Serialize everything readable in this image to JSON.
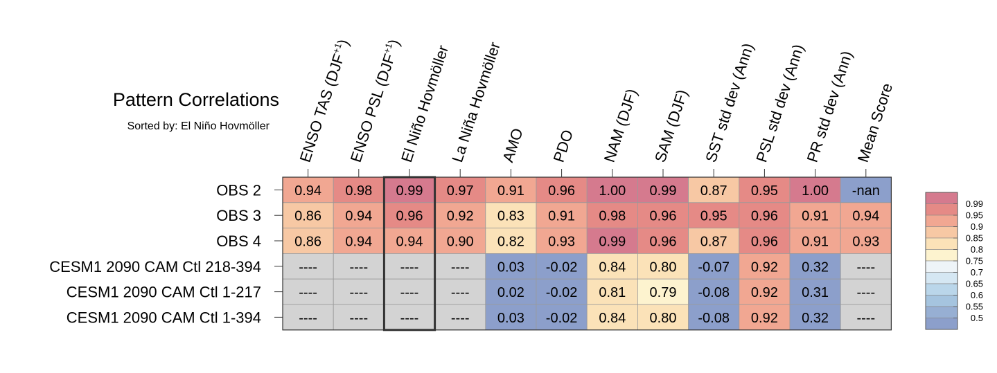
{
  "chart_data": {
    "type": "heatmap",
    "title": "Pattern Correlations",
    "subtitle": "Sorted by: El Niño Hovmöller",
    "columns": [
      {
        "base": "ENSO TAS (DJF",
        "sup": "+1",
        "tail": ")"
      },
      {
        "base": "ENSO PSL (DJF",
        "sup": "+1",
        "tail": ")"
      },
      {
        "base": "El Niño Hovmöller"
      },
      {
        "base": "La Niña Hovmöller"
      },
      {
        "base": "AMO"
      },
      {
        "base": "PDO"
      },
      {
        "base": "NAM (DJF)"
      },
      {
        "base": "SAM (DJF)"
      },
      {
        "base": "SST std dev (Ann)"
      },
      {
        "base": "PSL std dev (Ann)"
      },
      {
        "base": "PR std dev (Ann)"
      },
      {
        "base": "Mean Score"
      }
    ],
    "rows": [
      "OBS 2",
      "OBS 3",
      "OBS 4",
      "CESM1 2090 CAM Ctl 218-394",
      "CESM1 2090 CAM Ctl 1-217",
      "CESM1 2090 CAM Ctl 1-394"
    ],
    "values": [
      [
        0.94,
        0.98,
        0.99,
        0.97,
        0.91,
        0.96,
        1.0,
        0.99,
        0.87,
        0.95,
        1.0,
        null
      ],
      [
        0.86,
        0.94,
        0.96,
        0.92,
        0.83,
        0.91,
        0.98,
        0.96,
        0.95,
        0.96,
        0.91,
        0.94
      ],
      [
        0.86,
        0.94,
        0.94,
        0.9,
        0.82,
        0.93,
        0.99,
        0.96,
        0.87,
        0.96,
        0.91,
        0.93
      ],
      [
        null,
        null,
        null,
        null,
        0.03,
        -0.02,
        0.84,
        0.8,
        -0.07,
        0.92,
        0.32,
        null
      ],
      [
        null,
        null,
        null,
        null,
        0.02,
        -0.02,
        0.81,
        0.79,
        -0.08,
        0.92,
        0.31,
        null
      ],
      [
        null,
        null,
        null,
        null,
        0.03,
        -0.02,
        0.84,
        0.8,
        -0.08,
        0.92,
        0.32,
        null
      ]
    ],
    "labels": [
      [
        "0.94",
        "0.98",
        "0.99",
        "0.97",
        "0.91",
        "0.96",
        "1.00",
        "0.99",
        "0.87",
        "0.95",
        "1.00",
        "-nan"
      ],
      [
        "0.86",
        "0.94",
        "0.96",
        "0.92",
        "0.83",
        "0.91",
        "0.98",
        "0.96",
        "0.95",
        "0.96",
        "0.91",
        "0.94"
      ],
      [
        "0.86",
        "0.94",
        "0.94",
        "0.90",
        "0.82",
        "0.93",
        "0.99",
        "0.96",
        "0.87",
        "0.96",
        "0.91",
        "0.93"
      ],
      [
        "----",
        "----",
        "----",
        "----",
        "0.03",
        "-0.02",
        "0.84",
        "0.80",
        "-0.07",
        "0.92",
        "0.32",
        "----"
      ],
      [
        "----",
        "----",
        "----",
        "----",
        "0.02",
        "-0.02",
        "0.81",
        "0.79",
        "-0.08",
        "0.92",
        "0.31",
        "----"
      ],
      [
        "----",
        "----",
        "----",
        "----",
        "0.03",
        "-0.02",
        "0.84",
        "0.80",
        "-0.08",
        "0.92",
        "0.32",
        "----"
      ]
    ],
    "highlighted_column": "El Niño Hovmöller",
    "colorbar": {
      "levels": [
        0.5,
        0.55,
        0.6,
        0.65,
        0.7,
        0.75,
        0.8,
        0.85,
        0.9,
        0.95,
        0.99
      ],
      "tick_labels": [
        "0.5",
        "0.55",
        "0.6",
        "0.65",
        "0.7",
        "0.75",
        "0.8",
        "0.85",
        "0.9",
        "0.95",
        "0.99"
      ],
      "colors": [
        "#8c9fcb",
        "#97afd3",
        "#a5c4df",
        "#bad6ea",
        "#d5e7f3",
        "#eef4f8",
        "#fdf3cf",
        "#fbe2b8",
        "#f7c8a4",
        "#f1a792",
        "#e58a86",
        "#d57a8e"
      ],
      "missing_color": "#d3d3d3",
      "nan_color": "#8c9fcb"
    }
  }
}
